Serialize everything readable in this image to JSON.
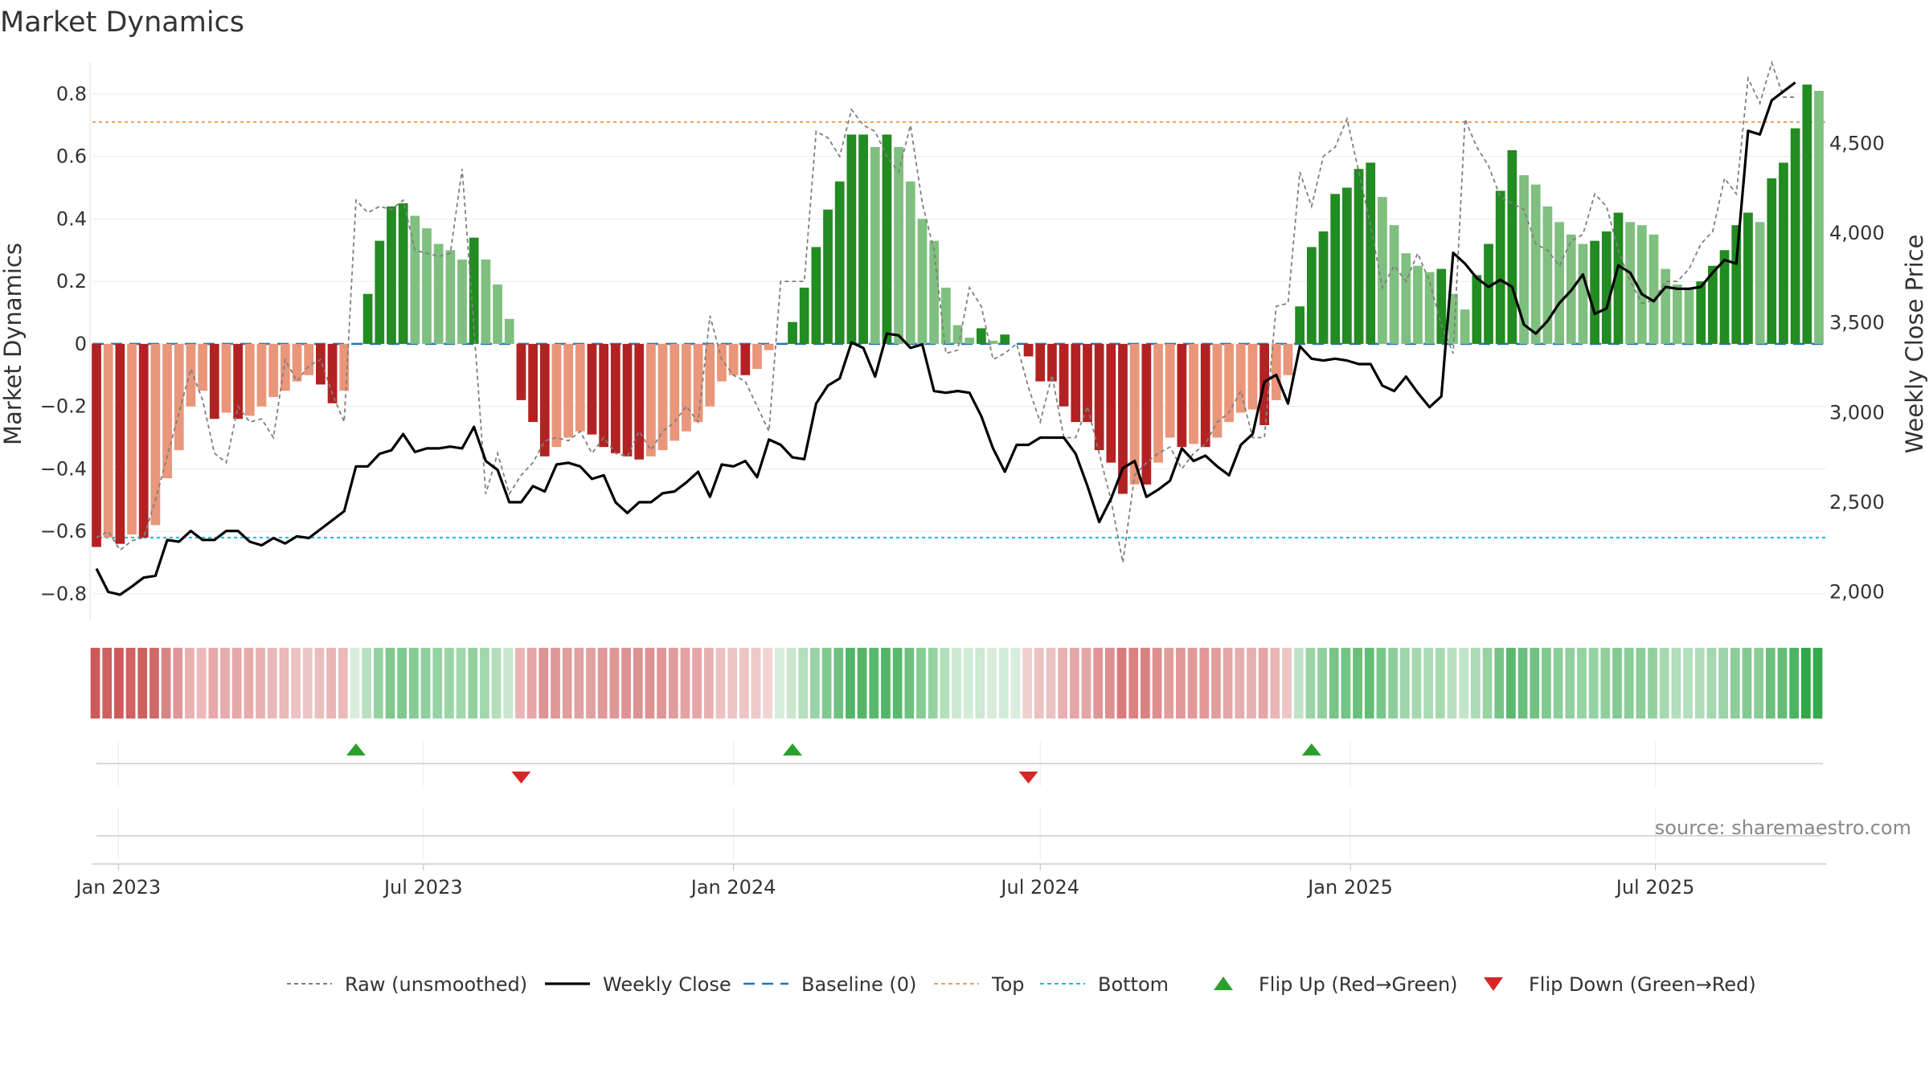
{
  "chart_data": {
    "type": "bar",
    "title": "Market Dynamics",
    "ylabel_left": "Market Dynamics",
    "ylabel_right": "Weekly Close Price",
    "ylim_left": [
      -0.88,
      0.9
    ],
    "ylim_right": [
      1850,
      4950
    ],
    "left_ticks": [
      0.8,
      0.6,
      0.4,
      0.2,
      0,
      -0.2,
      -0.4,
      -0.6,
      -0.8
    ],
    "left_tick_labels": [
      "0.8",
      "0.6",
      "0.4",
      "0.2",
      "0",
      "−0.2",
      "−0.4",
      "−0.6",
      "−0.8"
    ],
    "right_ticks": [
      4500,
      4000,
      3500,
      3000,
      2500,
      2000
    ],
    "right_tick_labels": [
      "4,500",
      "4,000",
      "3,500",
      "3,000",
      "2,500",
      "2,000"
    ],
    "x_start": "2022-12-19",
    "x_step_days": 7,
    "x_ticks": [
      {
        "date": "2023-01-01",
        "label": "Jan 2023"
      },
      {
        "date": "2023-07-01",
        "label": "Jul 2023"
      },
      {
        "date": "2024-01-01",
        "label": "Jan 2024"
      },
      {
        "date": "2024-07-01",
        "label": "Jul 2024"
      },
      {
        "date": "2025-01-01",
        "label": "Jan 2025"
      },
      {
        "date": "2025-07-01",
        "label": "Jul 2025"
      }
    ],
    "top_threshold": 0.71,
    "bottom_threshold": -0.62,
    "baseline": 0,
    "dynamics": [
      -0.65,
      -0.62,
      -0.64,
      -0.61,
      -0.62,
      -0.58,
      -0.43,
      -0.34,
      -0.2,
      -0.15,
      -0.24,
      -0.22,
      -0.24,
      -0.23,
      -0.2,
      -0.17,
      -0.15,
      -0.12,
      -0.1,
      -0.13,
      -0.19,
      -0.15,
      0.0,
      0.16,
      0.33,
      0.44,
      0.45,
      0.41,
      0.37,
      0.32,
      0.3,
      0.27,
      0.34,
      0.27,
      0.19,
      0.08,
      -0.18,
      -0.25,
      -0.36,
      -0.33,
      -0.3,
      -0.28,
      -0.29,
      -0.33,
      -0.35,
      -0.36,
      -0.37,
      -0.36,
      -0.34,
      -0.31,
      -0.28,
      -0.25,
      -0.2,
      -0.12,
      -0.1,
      -0.1,
      -0.08,
      -0.02,
      0.0,
      0.07,
      0.18,
      0.31,
      0.43,
      0.52,
      0.67,
      0.67,
      0.63,
      0.67,
      0.63,
      0.52,
      0.4,
      0.33,
      0.18,
      0.06,
      0.02,
      0.05,
      0.01,
      0.03,
      0.0,
      -0.04,
      -0.12,
      -0.12,
      -0.2,
      -0.25,
      -0.25,
      -0.34,
      -0.38,
      -0.48,
      -0.45,
      -0.45,
      -0.38,
      -0.3,
      -0.33,
      -0.32,
      -0.33,
      -0.3,
      -0.25,
      -0.22,
      -0.21,
      -0.26,
      -0.18,
      -0.1,
      0.12,
      0.31,
      0.36,
      0.48,
      0.5,
      0.56,
      0.58,
      0.47,
      0.38,
      0.29,
      0.25,
      0.23,
      0.24,
      0.16,
      0.11,
      0.22,
      0.32,
      0.49,
      0.62,
      0.54,
      0.51,
      0.44,
      0.39,
      0.35,
      0.32,
      0.33,
      0.36,
      0.42,
      0.39,
      0.38,
      0.35,
      0.24,
      0.19,
      0.18,
      0.2,
      0.25,
      0.3,
      0.38,
      0.42,
      0.39,
      0.53,
      0.58,
      0.69,
      0.83,
      0.81
    ],
    "raw": [
      -0.62,
      -0.6,
      -0.66,
      -0.63,
      -0.62,
      -0.5,
      -0.36,
      -0.22,
      -0.08,
      -0.18,
      -0.35,
      -0.38,
      -0.2,
      -0.25,
      -0.24,
      -0.3,
      -0.05,
      -0.12,
      -0.07,
      -0.05,
      -0.16,
      -0.25,
      0.46,
      0.42,
      0.44,
      0.43,
      0.46,
      0.3,
      0.29,
      0.28,
      0.29,
      0.56,
      0.05,
      -0.48,
      -0.35,
      -0.48,
      -0.42,
      -0.38,
      -0.31,
      -0.3,
      -0.31,
      -0.28,
      -0.35,
      -0.3,
      -0.35,
      -0.36,
      -0.28,
      -0.34,
      -0.28,
      -0.25,
      -0.2,
      -0.25,
      0.09,
      -0.05,
      -0.1,
      -0.12,
      -0.2,
      -0.28,
      0.2,
      0.2,
      0.2,
      0.68,
      0.66,
      0.6,
      0.75,
      0.7,
      0.68,
      0.6,
      0.55,
      0.7,
      0.45,
      0.3,
      -0.03,
      -0.02,
      0.18,
      0.12,
      -0.05,
      -0.03,
      0.0,
      -0.14,
      -0.25,
      -0.1,
      -0.3,
      -0.3,
      -0.2,
      -0.35,
      -0.5,
      -0.7,
      -0.42,
      -0.38,
      -0.35,
      -0.33,
      -0.4,
      -0.35,
      -0.32,
      -0.25,
      -0.22,
      -0.15,
      -0.3,
      -0.3,
      0.12,
      0.13,
      0.55,
      0.44,
      0.6,
      0.63,
      0.72,
      0.55,
      0.38,
      0.18,
      0.25,
      0.2,
      0.29,
      0.2,
      0.06,
      -0.03,
      0.72,
      0.63,
      0.57,
      0.47,
      0.45,
      0.43,
      0.32,
      0.3,
      0.25,
      0.33,
      0.35,
      0.48,
      0.44,
      0.3,
      0.2,
      0.13,
      0.14,
      0.2,
      0.2,
      0.24,
      0.32,
      0.36,
      0.53,
      0.48,
      0.85,
      0.77,
      0.9,
      0.79,
      0.79
    ],
    "weekly_close": [
      2130,
      2000,
      1985,
      2030,
      2080,
      2090,
      2290,
      2280,
      2340,
      2290,
      2290,
      2340,
      2340,
      2280,
      2260,
      2300,
      2270,
      2310,
      2300,
      2350,
      2400,
      2450,
      2700,
      2700,
      2770,
      2790,
      2880,
      2780,
      2800,
      2800,
      2810,
      2800,
      2920,
      2730,
      2680,
      2500,
      2500,
      2590,
      2560,
      2710,
      2720,
      2700,
      2630,
      2650,
      2500,
      2440,
      2500,
      2500,
      2550,
      2560,
      2610,
      2670,
      2530,
      2710,
      2700,
      2730,
      2640,
      2850,
      2820,
      2750,
      2740,
      3050,
      3150,
      3190,
      3390,
      3360,
      3200,
      3440,
      3430,
      3360,
      3380,
      3120,
      3110,
      3120,
      3110,
      2980,
      2800,
      2670,
      2820,
      2820,
      2860,
      2860,
      2860,
      2770,
      2590,
      2390,
      2520,
      2690,
      2730,
      2530,
      2570,
      2620,
      2800,
      2730,
      2760,
      2700,
      2650,
      2820,
      2880,
      3170,
      3210,
      3050,
      3370,
      3300,
      3290,
      3300,
      3290,
      3270,
      3270,
      3150,
      3120,
      3200,
      3110,
      3030,
      3090,
      3890,
      3830,
      3750,
      3700,
      3740,
      3700,
      3490,
      3440,
      3510,
      3610,
      3680,
      3770,
      3550,
      3580,
      3820,
      3780,
      3660,
      3620,
      3700,
      3690,
      3690,
      3700,
      3780,
      3850,
      3830,
      4570,
      4550,
      4740,
      4790,
      4840
    ],
    "flip_up_indices": [
      22,
      59,
      103
    ],
    "flip_down_indices": [
      36,
      79
    ],
    "regime_colors": {
      "green_strong": "#228b22",
      "green_light": "#7fbf7f",
      "red_strong": "#b22222",
      "red_light": "#e9967a"
    },
    "line_colors": {
      "raw": "#7f7f7f",
      "weekly_close": "#000000",
      "baseline": "#1f77b4",
      "top": "#e8a060",
      "bottom": "#17becf",
      "flip_up": "#2ca02c",
      "flip_down": "#d62728"
    }
  },
  "legend": [
    {
      "key": "raw",
      "label": "Raw (unsmoothed)",
      "style": "dotted",
      "color": "#7f7f7f"
    },
    {
      "key": "weekly_close",
      "label": "Weekly Close",
      "style": "solid",
      "color": "#000000"
    },
    {
      "key": "baseline",
      "label": "Baseline (0)",
      "style": "dashed",
      "color": "#1f77b4"
    },
    {
      "key": "top",
      "label": "Top",
      "style": "dotted",
      "color": "#e8a060"
    },
    {
      "key": "bottom",
      "label": "Bottom",
      "style": "dotted",
      "color": "#17becf"
    },
    {
      "key": "flip_up",
      "label": "Flip Up (Red→Green)",
      "style": "triangle-up",
      "color": "#2ca02c"
    },
    {
      "key": "flip_down",
      "label": "Flip Down (Green→Red)",
      "style": "triangle-down",
      "color": "#d62728"
    }
  ],
  "source_text": "source: sharemaestro.com"
}
